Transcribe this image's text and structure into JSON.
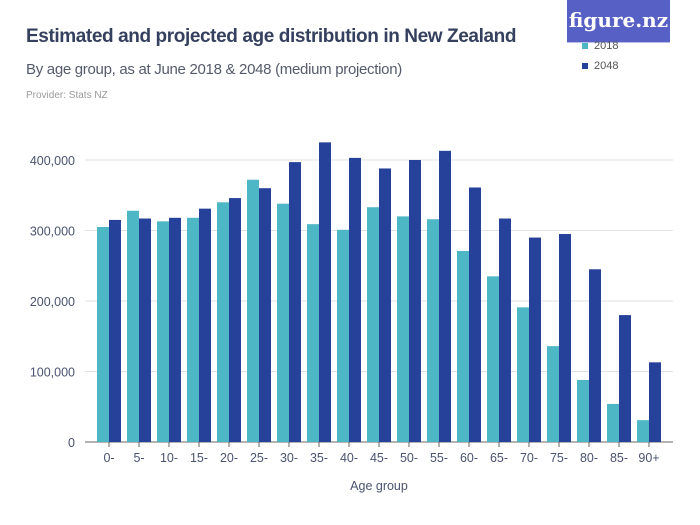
{
  "header": {
    "title": "Estimated and projected age distribution in New Zealand",
    "subtitle": "By age group, as at June 2018 & 2048 (medium projection)",
    "provider": "Provider: Stats NZ",
    "logo": "figure.nz"
  },
  "chart_data": {
    "type": "bar",
    "title": "Estimated and projected age distribution in New Zealand",
    "xlabel": "Age group",
    "ylabel": "",
    "ylim": [
      0,
      400000
    ],
    "yticks": [
      0,
      100000,
      200000,
      300000,
      400000
    ],
    "ytick_labels": [
      "0",
      "100,000",
      "200,000",
      "300,000",
      "400,000"
    ],
    "grid": true,
    "legend": "top-right",
    "categories": [
      "0-",
      "5-",
      "10-",
      "15-",
      "20-",
      "25-",
      "30-",
      "35-",
      "40-",
      "45-",
      "50-",
      "55-",
      "60-",
      "65-",
      "70-",
      "75-",
      "80-",
      "85-",
      "90+"
    ],
    "series": [
      {
        "name": "2018",
        "color": "#4eb7c6",
        "values": [
          305000,
          328000,
          313000,
          318000,
          340000,
          372000,
          338000,
          309000,
          301000,
          333000,
          320000,
          316000,
          271000,
          235000,
          191000,
          136000,
          88000,
          54000,
          31000
        ]
      },
      {
        "name": "2048",
        "color": "#26419a",
        "values": [
          315000,
          317000,
          318000,
          331000,
          346000,
          360000,
          397000,
          425000,
          403000,
          388000,
          400000,
          413000,
          361000,
          317000,
          290000,
          295000,
          245000,
          180000,
          113000
        ]
      }
    ]
  }
}
